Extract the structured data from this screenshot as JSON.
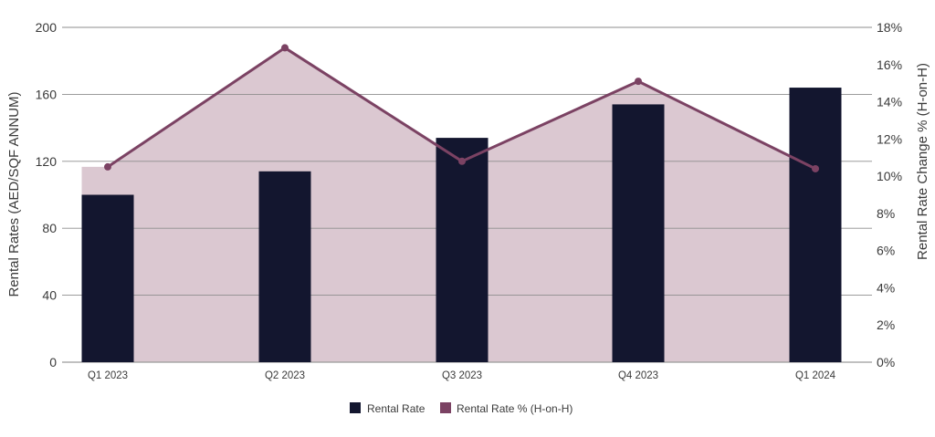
{
  "chart_data": {
    "type": "bar",
    "title": "",
    "xlabel": "",
    "ylabel": "Rental  Rates (AED/SQF ANNUM)",
    "y2label": "Rental Rate Change % (H-on-H)",
    "categories": [
      "Q1 2023",
      "Q2 2023",
      "Q3 2023",
      "Q4 2023",
      "Q1 2024"
    ],
    "ylim": [
      0,
      200
    ],
    "yticks": [
      "0",
      "40",
      "80",
      "120",
      "160",
      "200"
    ],
    "y2lim": [
      0,
      18
    ],
    "y2ticks": [
      "0%",
      "2%",
      "4%",
      "6%",
      "8%",
      "10%",
      "12%",
      "14%",
      "16%",
      "18%"
    ],
    "grid": true,
    "legend_position": "bottom",
    "series": [
      {
        "name": "Rental Rate",
        "type": "bar",
        "axis": "left",
        "color": "#13162f",
        "values": [
          100,
          114,
          134,
          154,
          164
        ]
      },
      {
        "name": "Rental Rate % (H-on-H)",
        "type": "line-area",
        "axis": "right",
        "color": "#7b4263",
        "area_color": "#dbc8d1",
        "values": [
          10.5,
          16.9,
          10.8,
          15.1,
          10.4
        ]
      }
    ]
  }
}
